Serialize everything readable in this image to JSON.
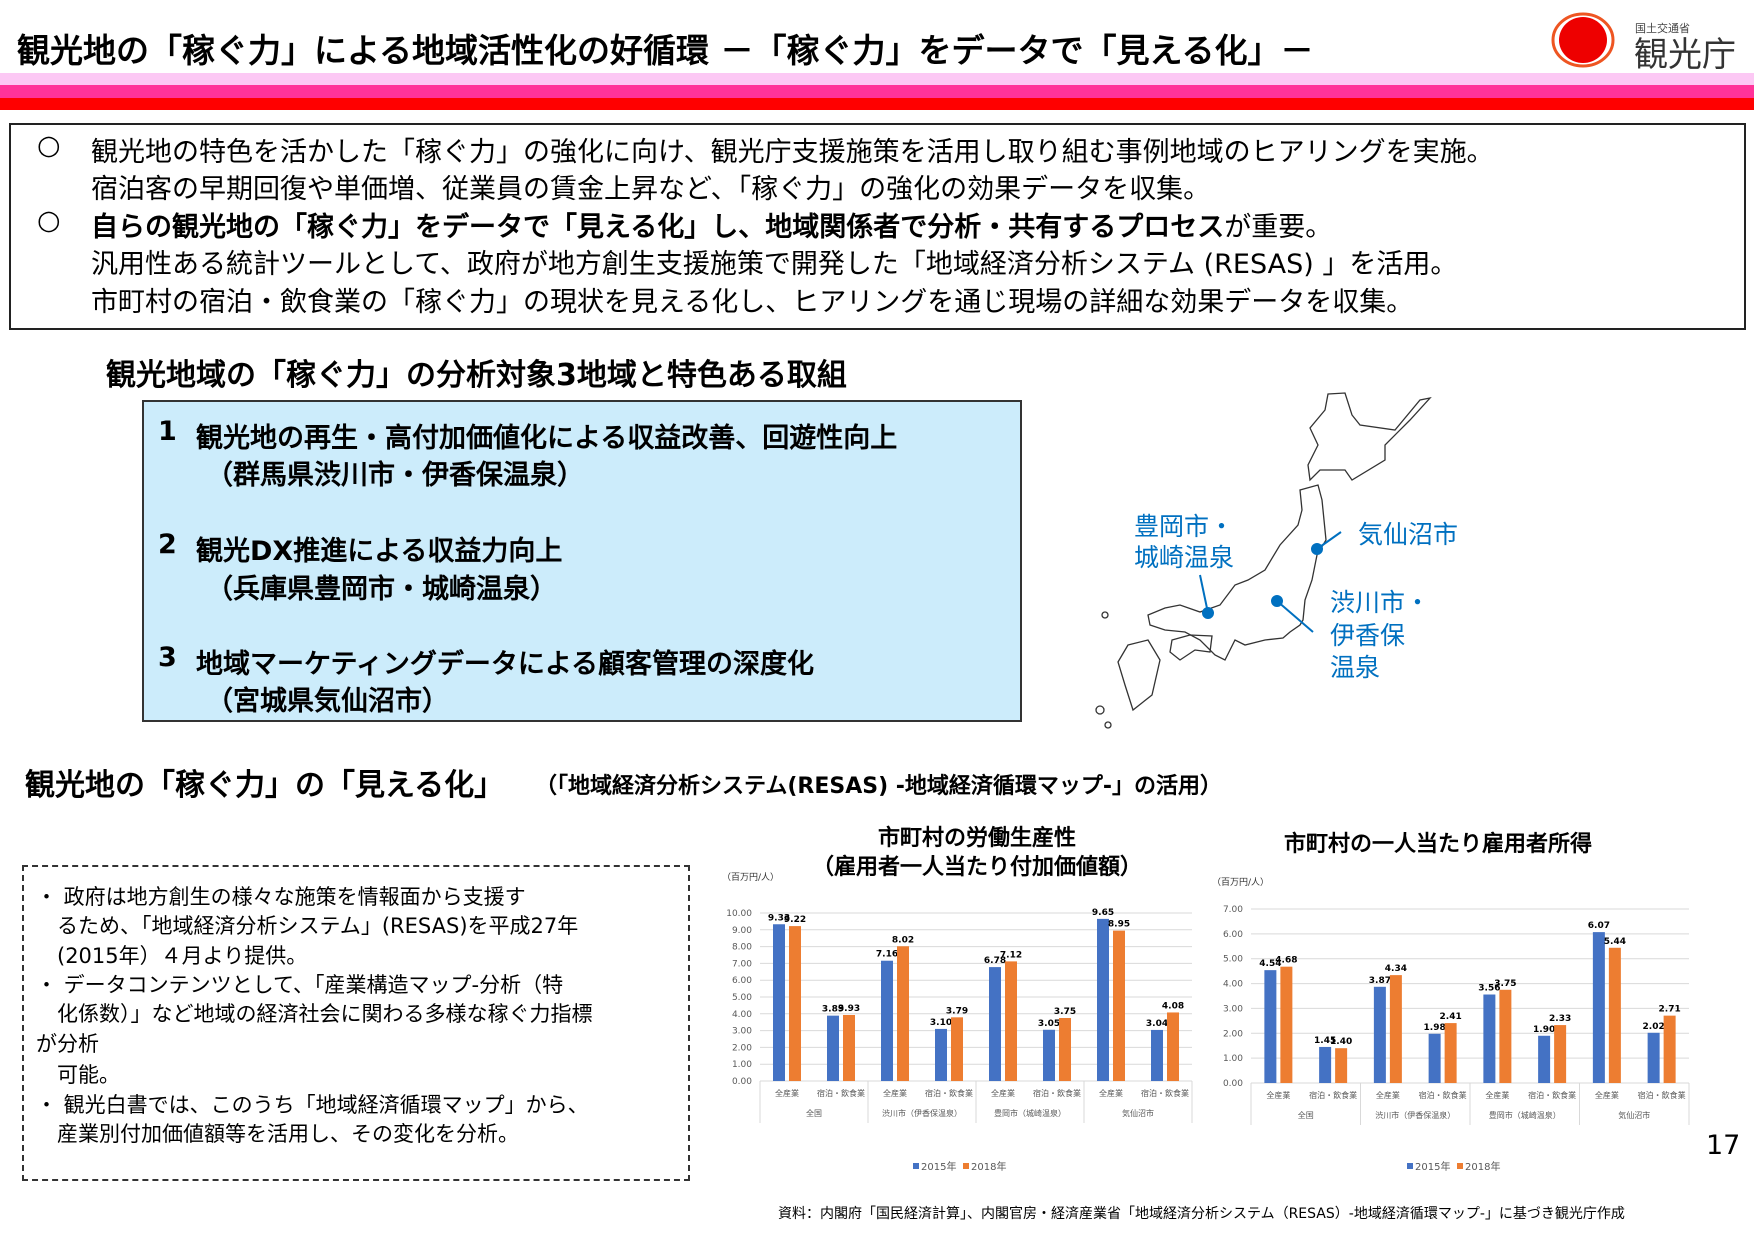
{
  "header": {
    "title": "観光地の「稼ぐ力」による地域活性化の好循環 －「稼ぐ力」をデータで「見える化」－",
    "logo_text": "国土交通省 観光庁",
    "band_colors": [
      "#fcc8f4",
      "#ff3399",
      "#ff0000"
    ]
  },
  "summary": {
    "bullet": "○",
    "lines": [
      {
        "text": "観光地の特色を活かした「稼ぐ力」の強化に向け、観光庁支援施策を活用し取り組む事例地域のヒアリングを実施。",
        "bold": false,
        "bullet": true
      },
      {
        "text": "宿泊客の早期回復や単価増、従業員の賃金上昇など、「稼ぐ力」の強化の効果データを収集。",
        "bold": false,
        "bullet": false
      },
      {
        "text": "自らの観光地の「稼ぐ力」をデータで「見える化」し、地域関係者で分析・共有するプロセス",
        "suffix": "が重要。",
        "bold": true,
        "bullet": true
      },
      {
        "text": "汎用性ある統計ツールとして、政府が地方創生支援施策で開発した「地域経済分析システム (RESAS) 」を活用。",
        "bold": false,
        "bullet": false
      },
      {
        "text": "市町村の宿泊・飲食業の「稼ぐ力」の現状を見える化し、ヒアリングを通じ現場の詳細な効果データを収集。",
        "bold": false,
        "bullet": false
      }
    ]
  },
  "targets": {
    "heading": "観光地域の「稼ぐ力」の分析対象3地域と特色ある取組",
    "items": [
      {
        "num": "1",
        "title": "観光地の再生・高付加価値化による収益改善、回遊性向上",
        "place": "（群馬県渋川市・伊香保温泉）"
      },
      {
        "num": "2",
        "title": "観光DX推進による収益力向上",
        "place": "（兵庫県豊岡市・城崎温泉）"
      },
      {
        "num": "3",
        "title": "地域マーケティングデータによる顧客管理の深度化",
        "place": "（宮城県気仙沼市）"
      }
    ]
  },
  "map": {
    "labels": {
      "toyooka": [
        "豊岡市・",
        "城崎温泉"
      ],
      "kesennuma": [
        "気仙沼市"
      ],
      "shibukawa": [
        "渋川市・",
        "伊香保",
        "温泉"
      ]
    },
    "color": "#0070c0"
  },
  "visualize": {
    "heading": "観光地の「稼ぐ力」の「見える化」",
    "subheading": "（「地域経済分析システム(RESAS) -地域経済循環マップ-」の活用）",
    "notes": [
      "・ 政府は地方創生の様々な施策を情報面から支援す",
      "　るため、「地域経済分析システム」(RESAS)を平成27年",
      "　(2015年）４月より提供。",
      "・ データコンテンツとして、「産業構造マップ-分析（特",
      "　化係数）」など地域の経済社会に関わる多様な稼ぐ力指標",
      "が分析",
      "　可能。",
      "・ 観光白書では、このうち「地域経済循環マップ」から、",
      "　産業別付加価値額等を活用し、その変化を分析。"
    ]
  },
  "chart_data": [
    {
      "type": "bar",
      "title": "市町村の労働生産性\n（雇用者一人当たり付加価値額）",
      "title_lines": [
        "市町村の労働生産性",
        "（雇用者一人当たり付加価値額）"
      ],
      "ylabel": "（百万円/人）",
      "ylim": [
        0,
        10
      ],
      "ytick_step": 1,
      "groups": [
        "全国",
        "渋川市（伊香保温泉）",
        "豊岡市（城崎温泉）",
        "気仙沼市"
      ],
      "categories": [
        "全産業",
        "宿泊・飲食業",
        "全産業",
        "宿泊・飲食業",
        "全産業",
        "宿泊・飲食業",
        "全産業",
        "宿泊・飲食業"
      ],
      "series": [
        {
          "name": "2015年",
          "color": "#4472c4",
          "values": [
            9.33,
            3.89,
            7.16,
            3.1,
            6.78,
            3.05,
            9.65,
            3.04
          ]
        },
        {
          "name": "2018年",
          "color": "#ed7d31",
          "values": [
            9.22,
            3.93,
            8.02,
            3.79,
            7.12,
            3.75,
            8.95,
            4.08
          ]
        }
      ],
      "legend": "bottom",
      "grid": true
    },
    {
      "type": "bar",
      "title": "市町村の一人当たり雇用者所得",
      "title_lines": [
        "市町村の一人当たり雇用者所得"
      ],
      "ylabel": "（百万円/人）",
      "ylim": [
        0,
        7
      ],
      "ytick_step": 1,
      "groups": [
        "全国",
        "渋川市（伊香保温泉）",
        "豊岡市（城崎温泉）",
        "気仙沼市"
      ],
      "categories": [
        "全産業",
        "宿泊・飲食業",
        "全産業",
        "宿泊・飲食業",
        "全産業",
        "宿泊・飲食業",
        "全産業",
        "宿泊・飲食業"
      ],
      "series": [
        {
          "name": "2015年",
          "color": "#4472c4",
          "values": [
            4.54,
            1.45,
            3.87,
            1.98,
            3.56,
            1.9,
            6.07,
            2.02
          ]
        },
        {
          "name": "2018年",
          "color": "#ed7d31",
          "values": [
            4.68,
            1.4,
            4.34,
            2.41,
            3.75,
            2.33,
            5.44,
            2.71
          ]
        }
      ],
      "legend": "bottom",
      "grid": true
    }
  ],
  "footer": {
    "page_number": "17",
    "source": "資料：内閣府「国民経済計算」、内閣官房・経済産業省「地域経済分析システム（RESAS）-地域経済循環マップ-」に基づき観光庁作成"
  }
}
